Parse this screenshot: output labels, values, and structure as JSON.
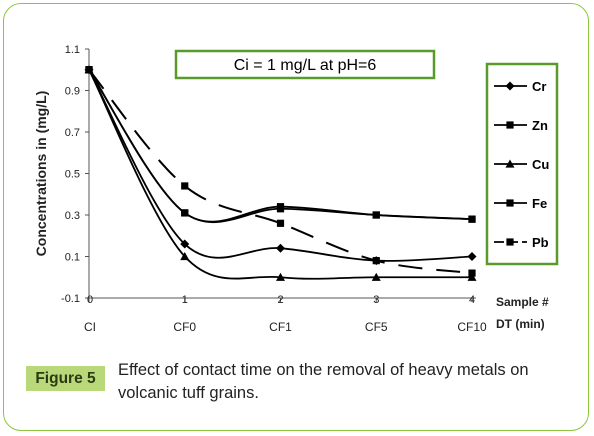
{
  "figure": {
    "label": "Figure 5",
    "caption": "Effect of contact time on the removal of heavy metals on volcanic tuff grains."
  },
  "colors": {
    "frame": "#8cc63f",
    "label_bg": "#b9d87a",
    "box_border": "#5a9a2a",
    "series": "#000000"
  },
  "chart_data": {
    "type": "line",
    "annotation": "Ci = 1 mg/L at pH=6",
    "ylabel": "Concentrations in (mg/L)",
    "xlabel": "Sample #",
    "xlabel2": "DT  (min)",
    "x": [
      0,
      1,
      2,
      3,
      4
    ],
    "x_tick_labels": [
      "0",
      "1",
      "2",
      "3",
      "4"
    ],
    "x_category_labels": [
      "CI",
      "CF0",
      "CF1",
      "CF5",
      "CF10"
    ],
    "ylim": [
      -0.1,
      1.1
    ],
    "y_ticks": [
      "-0.1",
      "0.1",
      "0.3",
      "0.5",
      "0.7",
      "0.9",
      "1.1"
    ],
    "legend_position": "right",
    "series": [
      {
        "name": "Cr",
        "marker": "diamond",
        "values": [
          1.0,
          0.16,
          0.14,
          0.08,
          0.1
        ]
      },
      {
        "name": "Zn",
        "marker": "square",
        "values": [
          1.0,
          0.31,
          0.33,
          0.3,
          0.28
        ]
      },
      {
        "name": "Cu",
        "marker": "triangle",
        "values": [
          1.0,
          0.1,
          0.0,
          0.0,
          0.0
        ]
      },
      {
        "name": "Fe",
        "marker": "square",
        "values": [
          1.0,
          0.31,
          0.34,
          0.3,
          0.28
        ]
      },
      {
        "name": "Pb",
        "marker": "square",
        "values": [
          1.0,
          0.44,
          0.26,
          0.08,
          0.02
        ]
      }
    ]
  }
}
